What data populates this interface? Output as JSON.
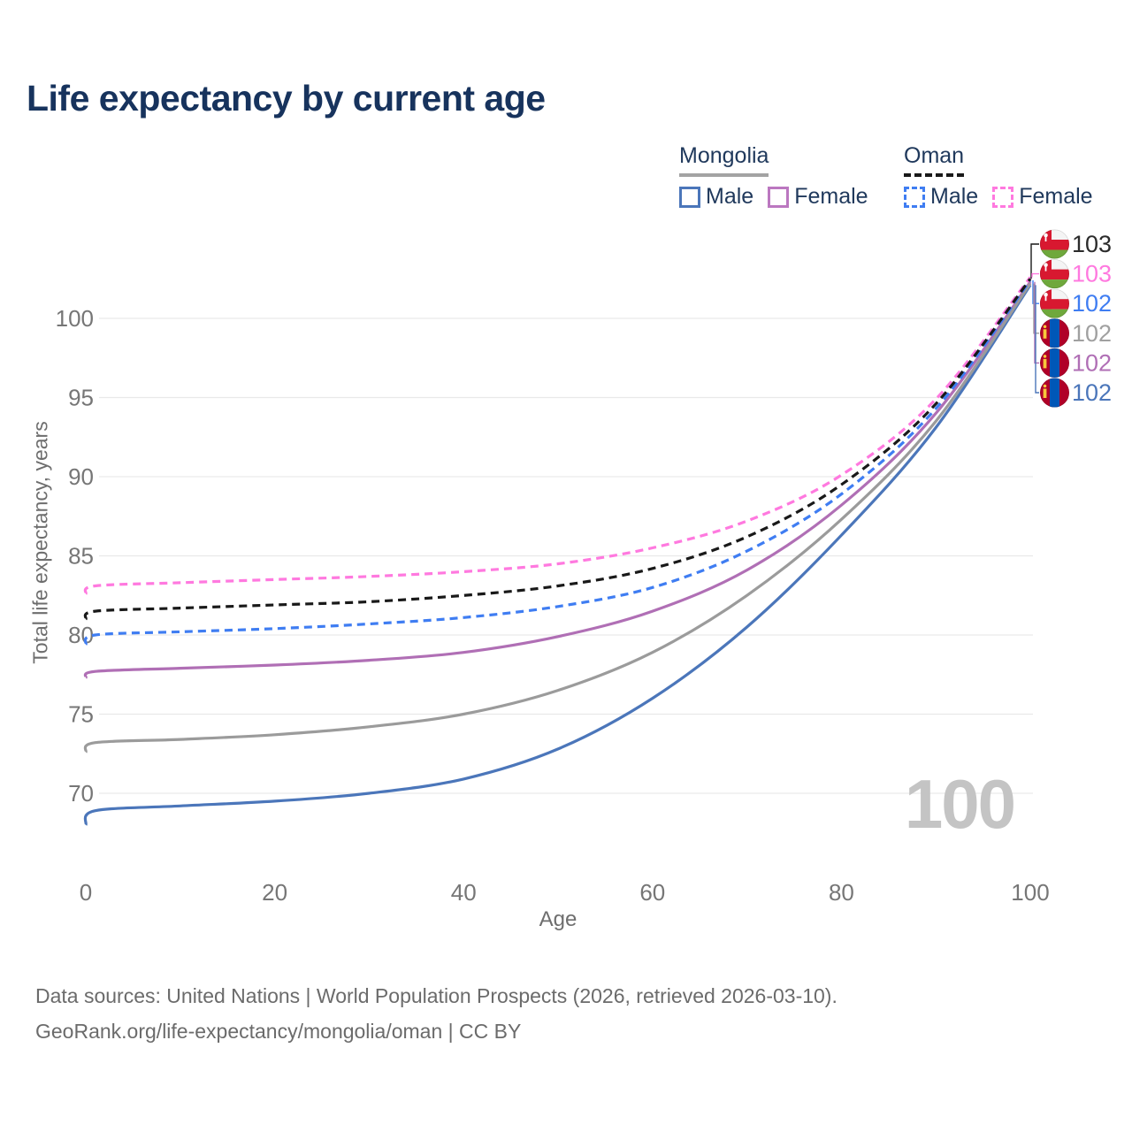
{
  "title": "Life expectancy by current age",
  "watermark": "100",
  "legend": {
    "groups": [
      {
        "name": "Mongolia",
        "line_style": "solid",
        "underline_color": "#a3a3a3",
        "items": [
          {
            "label": "Male",
            "color": "#4b76ba"
          },
          {
            "label": "Female",
            "color": "#bb77c0"
          }
        ]
      },
      {
        "name": "Oman",
        "line_style": "dashed",
        "underline_color": "#1a1a1a",
        "items": [
          {
            "label": "Male",
            "color": "#3f7df2"
          },
          {
            "label": "Female",
            "color": "#ff79df"
          }
        ]
      }
    ]
  },
  "chart_data": {
    "type": "line",
    "title": "Life expectancy by current age",
    "xlabel": "Age",
    "ylabel": "Total life expectancy, years",
    "xlim": [
      0,
      100
    ],
    "ylim": [
      65,
      105
    ],
    "xticks": [
      0,
      20,
      40,
      60,
      80,
      100
    ],
    "yticks": [
      70,
      75,
      80,
      85,
      90,
      95,
      100
    ],
    "grid": true,
    "legend_position": "top-right",
    "x": [
      0,
      1,
      10,
      20,
      30,
      40,
      50,
      60,
      70,
      80,
      90,
      100
    ],
    "series": [
      {
        "id": "oman-total",
        "name": "Oman Total",
        "country": "Oman",
        "sex": "Total",
        "color": "#191919",
        "label_color": "#2b2b2b",
        "dash": true,
        "flag": "oman",
        "end_label": "103",
        "values": [
          81.0,
          81.5,
          81.7,
          81.9,
          82.1,
          82.5,
          83.1,
          84.2,
          86.2,
          89.5,
          94.6,
          102.5
        ]
      },
      {
        "id": "oman-female",
        "name": "Oman Female",
        "country": "Oman",
        "sex": "Female",
        "color": "#ff79df",
        "label_color": "#ff79df",
        "dash": true,
        "flag": "oman",
        "end_label": "103",
        "values": [
          82.6,
          83.1,
          83.3,
          83.5,
          83.7,
          84.0,
          84.5,
          85.5,
          87.2,
          90.1,
          94.9,
          102.6
        ]
      },
      {
        "id": "oman-male",
        "name": "Oman Male",
        "country": "Oman",
        "sex": "Male",
        "color": "#3f7df2",
        "label_color": "#3f7df2",
        "dash": true,
        "flag": "oman",
        "end_label": "102",
        "values": [
          79.4,
          80.0,
          80.2,
          80.4,
          80.7,
          81.1,
          81.8,
          83.0,
          85.3,
          88.9,
          94.3,
          102.4
        ]
      },
      {
        "id": "mongolia-total",
        "name": "Mongolia Total",
        "country": "Mongolia",
        "sex": "Total",
        "color": "#9b9b9b",
        "label_color": "#a0a0a0",
        "dash": false,
        "flag": "mongolia",
        "end_label": "102",
        "values": [
          72.6,
          73.2,
          73.4,
          73.7,
          74.2,
          75.0,
          76.5,
          78.9,
          82.5,
          87.3,
          93.5,
          102.2
        ]
      },
      {
        "id": "mongolia-female",
        "name": "Mongolia Female",
        "country": "Mongolia",
        "sex": "Female",
        "color": "#b06fb5",
        "label_color": "#b06fb5",
        "dash": false,
        "flag": "mongolia",
        "end_label": "102",
        "values": [
          77.3,
          77.7,
          77.9,
          78.1,
          78.4,
          78.9,
          79.9,
          81.5,
          84.1,
          88.2,
          94.0,
          102.3
        ]
      },
      {
        "id": "mongolia-male",
        "name": "Mongolia Male",
        "country": "Mongolia",
        "sex": "Male",
        "color": "#4b76ba",
        "label_color": "#4b76ba",
        "dash": false,
        "flag": "mongolia",
        "end_label": "102",
        "values": [
          68.0,
          68.9,
          69.2,
          69.5,
          70.0,
          70.9,
          72.8,
          76.0,
          80.5,
          86.3,
          93.1,
          102.1
        ]
      }
    ]
  },
  "footer": {
    "line1": "Data sources: United Nations | World Population Prospects (2026, retrieved 2026-03-10).",
    "line2": "GeoRank.org/life-expectancy/mongolia/oman | CC BY"
  }
}
